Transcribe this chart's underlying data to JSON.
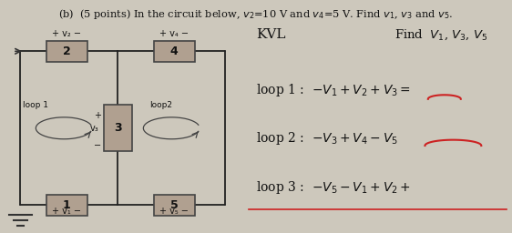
{
  "bg_color": "#cdc8bc",
  "font_color": "#111111",
  "red_color": "#cc2222",
  "title": "(b)  (5 points) In the circuit below, $v_2$=10 V and $v_4$=5 V. Find $v_1$, $v_3$ and $v_5$.",
  "kvl_label": "KVL",
  "find_label": "Find  $V_1$, $V_3$, $V_5$",
  "loop1_eq": "loop 1 :  $-V_1 +V_2 +V_3 =$",
  "loop2_eq": "loop 2 :  $-V_3 +V_4-V_5$",
  "loop3_eq": "loop 3 :  $-V_5-V_1+V_2 +$"
}
